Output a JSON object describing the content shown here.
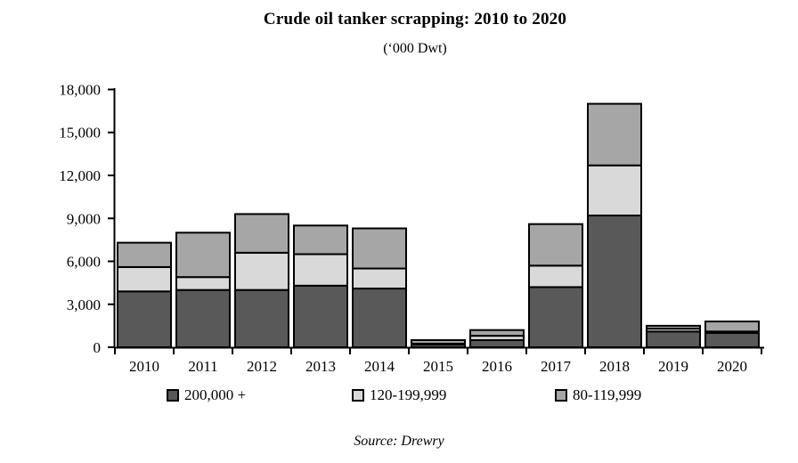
{
  "chart_data": {
    "type": "bar",
    "stacked": true,
    "title": "Crude oil tanker scrapping: 2010 to 2020",
    "subtitle": "(‘000 Dwt)",
    "source": "Source: Drewry",
    "categories": [
      "2010",
      "2011",
      "2012",
      "2013",
      "2014",
      "2015",
      "2016",
      "2017",
      "2018",
      "2019",
      "2020"
    ],
    "series": [
      {
        "name": "200,000 +",
        "color": "#595959",
        "values": [
          3900,
          4000,
          4000,
          4300,
          4100,
          200,
          500,
          4200,
          9200,
          1100,
          1000
        ]
      },
      {
        "name": "120-199,999",
        "color": "#d9d9d9",
        "values": [
          1700,
          900,
          2600,
          2200,
          1400,
          50,
          300,
          1500,
          3500,
          200,
          100
        ]
      },
      {
        "name": "80-119,999",
        "color": "#a6a6a6",
        "values": [
          1700,
          3100,
          2700,
          2000,
          2800,
          250,
          400,
          2900,
          4300,
          200,
          700
        ]
      }
    ],
    "totals": [
      7300,
      8000,
      9300,
      8500,
      8300,
      500,
      1200,
      8600,
      17000,
      1500,
      1800
    ],
    "xlabel": "",
    "ylabel": "",
    "ylim": [
      0,
      18000
    ],
    "ytick_values": [
      0,
      3000,
      6000,
      9000,
      12000,
      15000,
      18000
    ],
    "ytick_labels": [
      "0",
      "3,000",
      "6,000",
      "9,000",
      "12,000",
      "15,000",
      "18,000"
    ],
    "grid": false,
    "legend_position": "bottom",
    "bar_border_color": "#000000",
    "axis_color": "#000000"
  }
}
